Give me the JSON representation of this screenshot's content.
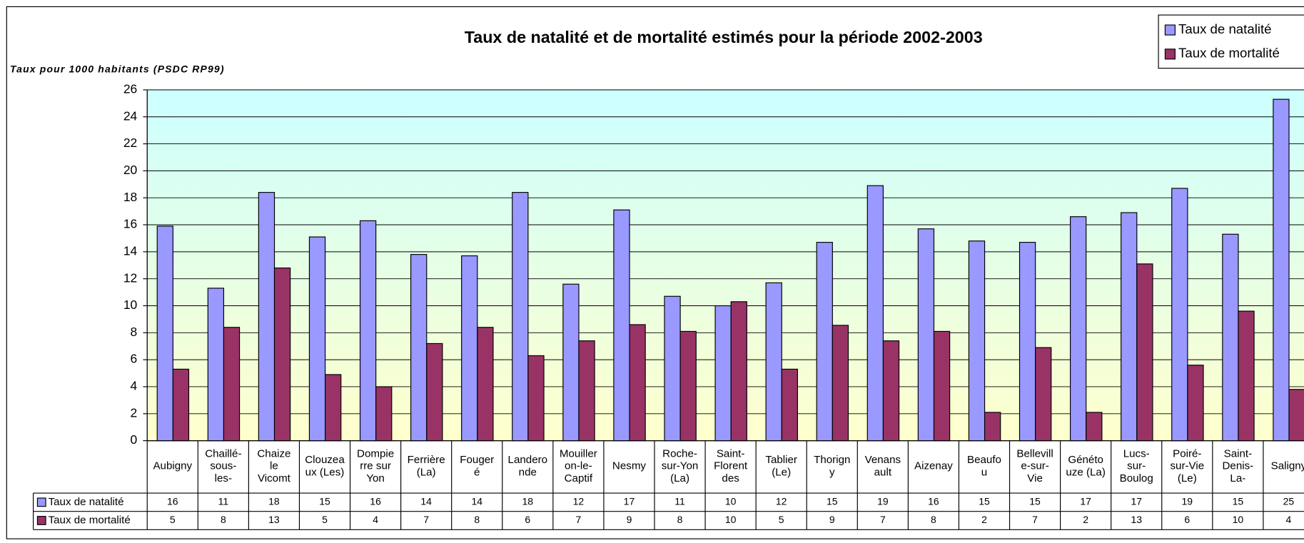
{
  "chart_data": {
    "type": "bar",
    "title": "Taux de natalité et de mortalité estimés pour la période 2002-2003",
    "y_label": "Taux pour 1000 habitants (PSDC RP99)",
    "categories": [
      "Aubigny",
      "Chaillé-\nsous-\nles-",
      "Chaize\nle\nVicomt",
      "Clouzea\nux (Les)",
      "Dompie\nrre sur\nYon",
      "Ferrière\n(La)",
      "Fouger\né",
      "Landero\nnde",
      "Mouiller\non-le-\nCaptif",
      "Nesmy",
      "Roche-\nsur-Yon\n(La)",
      "Saint-\nFlorent\ndes",
      "Tablier\n(Le)",
      "Thorign\ny",
      "Venans\nault",
      "Aizenay",
      "Beaufo\nu",
      "Bellevill\ne-sur-\nVie",
      "Généto\nuze (La)",
      "Lucs-\nsur-\nBoulog",
      "Poiré-\nsur-Vie\n(Le)",
      "Saint-\nDenis-\nLa-",
      "Saligny"
    ],
    "series": [
      {
        "name": "Taux de natalité",
        "color": "#9999ff",
        "values": [
          15.9,
          11.3,
          18.4,
          15.1,
          16.3,
          13.8,
          13.7,
          18.4,
          11.6,
          17.1,
          10.7,
          10.0,
          11.7,
          14.7,
          18.9,
          15.7,
          14.8,
          14.7,
          16.6,
          16.9,
          18.7,
          15.3,
          25.3
        ],
        "value_labels": [
          "16",
          "11",
          "18",
          "15",
          "16",
          "14",
          "14",
          "18",
          "12",
          "17",
          "11",
          "10",
          "12",
          "15",
          "19",
          "16",
          "15",
          "15",
          "17",
          "17",
          "19",
          "15",
          "25"
        ]
      },
      {
        "name": "Taux de mortalité",
        "color": "#993366",
        "values": [
          5.3,
          8.4,
          12.8,
          4.9,
          4.0,
          7.2,
          8.4,
          6.3,
          7.4,
          8.6,
          8.1,
          10.3,
          5.3,
          8.55,
          7.4,
          8.1,
          2.1,
          6.9,
          2.1,
          13.1,
          5.6,
          9.6,
          3.8
        ],
        "value_labels": [
          "5",
          "8",
          "13",
          "5",
          "4",
          "7",
          "8",
          "6",
          "7",
          "9",
          "8",
          "10",
          "5",
          "9",
          "7",
          "8",
          "2",
          "7",
          "2",
          "13",
          "6",
          "10",
          "4"
        ]
      }
    ],
    "ylim": [
      0,
      26
    ],
    "yticks": [
      0,
      2,
      4,
      6,
      8,
      10,
      12,
      14,
      16,
      18,
      20,
      22,
      24,
      26
    ],
    "grid": true,
    "legend": "top-right"
  }
}
